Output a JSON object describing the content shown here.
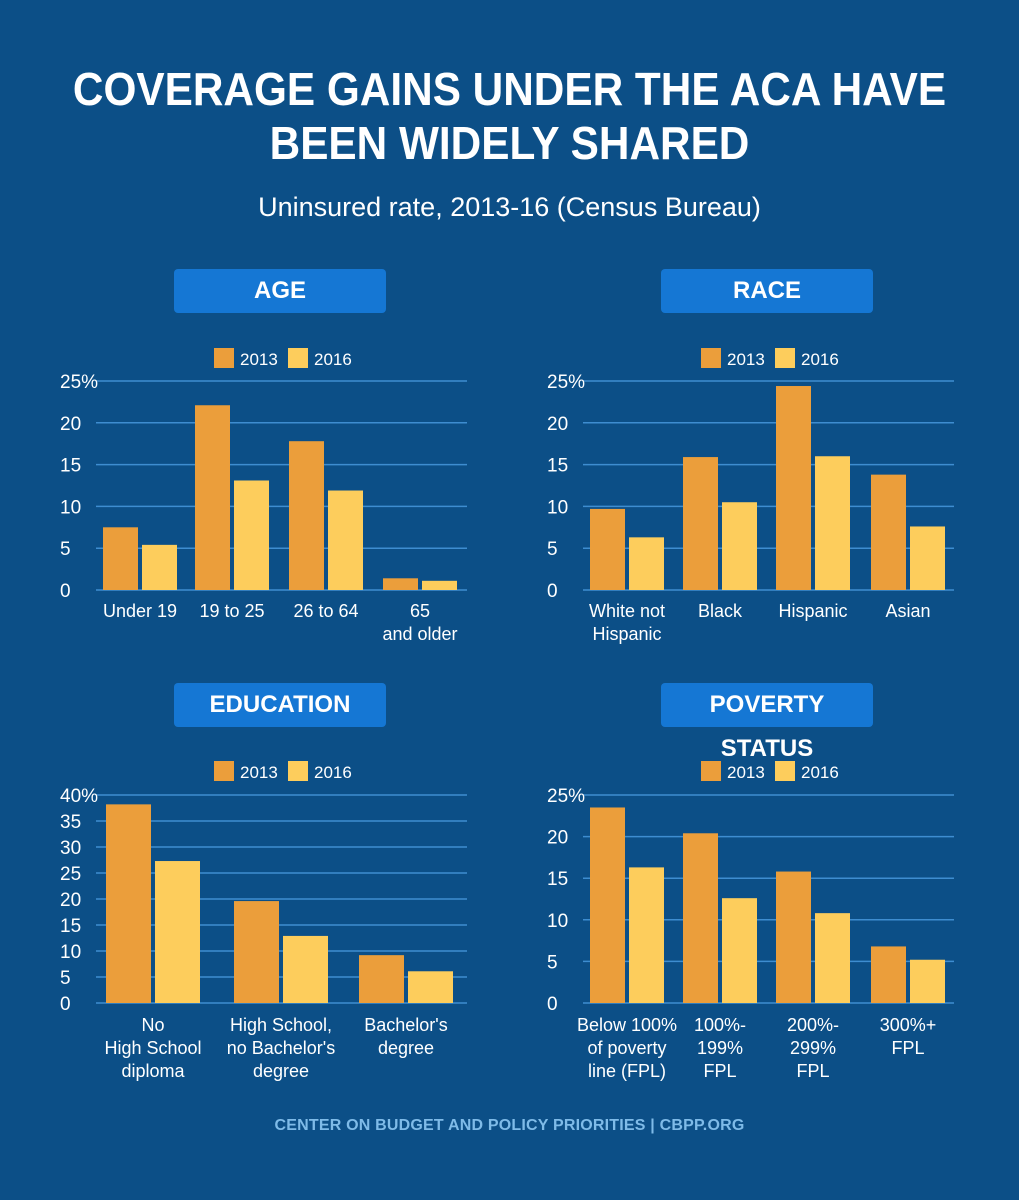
{
  "title_lines": [
    "Coverage Gains Under the ACA Have",
    "Been Widely Shared"
  ],
  "subtitle": "Uninsured rate, 2013-16 (Census Bureau)",
  "footer": "CENTER ON BUDGET AND POLICY PRIORITIES | CBPP.ORG",
  "colors": {
    "background": "#0c4f87",
    "series_2013": "#eb9e3b",
    "series_2016": "#fdcd5c",
    "panel_header": "#1577d4",
    "gridline": "#3e8dd0"
  },
  "chart_data": [
    {
      "type": "bar",
      "title": "AGE",
      "categories": [
        "Under 19",
        "19 to 25",
        "26 to 64",
        "65\nand older"
      ],
      "series": [
        {
          "name": "2013",
          "values": [
            7.5,
            22.1,
            17.8,
            1.4
          ]
        },
        {
          "name": "2016",
          "values": [
            5.4,
            13.1,
            11.9,
            1.1
          ]
        }
      ],
      "yticks": [
        "25%",
        "20",
        "15",
        "10",
        "5",
        "0"
      ],
      "ylim": [
        0,
        25
      ],
      "legend": "top"
    },
    {
      "type": "bar",
      "title": "RACE",
      "categories": [
        "White not\nHispanic",
        "Black",
        "Hispanic",
        "Asian"
      ],
      "series": [
        {
          "name": "2013",
          "values": [
            9.7,
            15.9,
            24.4,
            13.8
          ]
        },
        {
          "name": "2016",
          "values": [
            6.3,
            10.5,
            16.0,
            7.6
          ]
        }
      ],
      "yticks": [
        "25%",
        "20",
        "15",
        "10",
        "5",
        "0"
      ],
      "ylim": [
        0,
        25
      ],
      "legend": "top"
    },
    {
      "type": "bar",
      "title": "EDUCATION",
      "categories": [
        "No\nHigh School\ndiploma",
        "High School,\nno Bachelor's\ndegree",
        "Bachelor's\ndegree"
      ],
      "series": [
        {
          "name": "2013",
          "values": [
            38.2,
            19.6,
            9.2
          ]
        },
        {
          "name": "2016",
          "values": [
            27.3,
            12.9,
            6.1
          ]
        }
      ],
      "yticks": [
        "40%",
        "35",
        "30",
        "25",
        "20",
        "15",
        "10",
        "5",
        "0"
      ],
      "ylim": [
        0,
        40
      ],
      "legend": "top"
    },
    {
      "type": "bar",
      "title": "POVERTY STATUS",
      "categories": [
        "Below 100%\nof poverty\nline (FPL)",
        "100%-\n199%\nFPL",
        "200%-\n299%\nFPL",
        "300%+\nFPL"
      ],
      "series": [
        {
          "name": "2013",
          "values": [
            23.5,
            20.4,
            15.8,
            6.8
          ]
        },
        {
          "name": "2016",
          "values": [
            16.3,
            12.6,
            10.8,
            5.2
          ]
        }
      ],
      "yticks": [
        "25%",
        "20",
        "15",
        "10",
        "5",
        "0"
      ],
      "ylim": [
        0,
        25
      ],
      "legend": "top"
    }
  ]
}
